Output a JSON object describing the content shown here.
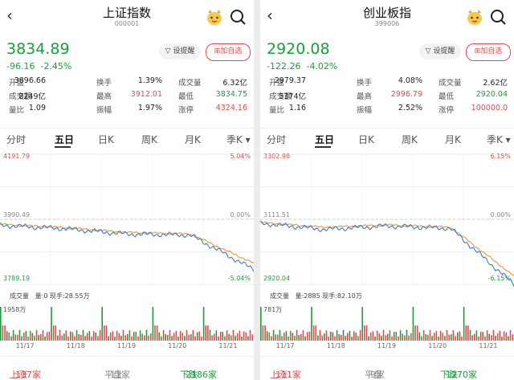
{
  "panels": [
    {
      "title": "上证指数",
      "code": "000001",
      "price": "3834.89",
      "change": "-96.16",
      "change_pct": "-2.45%",
      "alert_label": "设提醒",
      "fav_label": "加自选",
      "stats": [
        {
          "k1": "开盘",
          "v1": "3896.66",
          "k2": "换手",
          "v2": "1.39%",
          "k3": "成交量",
          "v3": "6.32亿"
        },
        {
          "k1": "成交额",
          "v1": "8249亿",
          "k2": "最高",
          "v2": "3912.01",
          "k3": "最低",
          "v3": "3834.75"
        },
        {
          "k1": "量比",
          "v1": "1.09",
          "k2": "振幅",
          "v2": "1.97%",
          "k3": "涨停",
          "v3": "4324.16"
        }
      ],
      "tabs": [
        "分时",
        "五日",
        "日K",
        "周K",
        "月K",
        "季K"
      ],
      "active_tab": "五日",
      "y_top": "4191.79",
      "y_mid": "3990.49",
      "y_bot": "3789.19",
      "pct_top": "5.04%",
      "pct_mid": "0.00%",
      "pct_bot": "-5.04%",
      "vol_title": "成交量",
      "vol_info": "量:0 现手:28.55万",
      "vol_max": "1958万",
      "dates": [
        "11/17",
        "11/18",
        "11/19",
        "11/20",
        "11/21"
      ],
      "up_label": "上涨",
      "up_count": "137家",
      "flat_label": "平盘",
      "flat_count": "11家",
      "down_label": "下跌",
      "down_count": "2186家"
    },
    {
      "title": "创业板指",
      "code": "399006",
      "price": "2920.08",
      "change": "-122.26",
      "change_pct": "-4.02%",
      "alert_label": "设提醒",
      "fav_label": "加自选",
      "stats": [
        {
          "k1": "开盘",
          "v1": "2979.37",
          "k2": "换手",
          "v2": "4.08%",
          "k3": "成交量",
          "v3": "2.62亿"
        },
        {
          "k1": "成交额",
          "v1": "5374亿",
          "k2": "最高",
          "v2": "2996.79",
          "k3": "最低",
          "v3": "2920.04"
        },
        {
          "k1": "量比",
          "v1": "1.16",
          "k2": "振幅",
          "v2": "2.52%",
          "k3": "涨停",
          "v3": "100000.0"
        }
      ],
      "tabs": [
        "分时",
        "五日",
        "日K",
        "周K",
        "月K",
        "季K"
      ],
      "active_tab": "五日",
      "y_top": "3302.98",
      "y_mid": "3111.51",
      "y_bot": "2920.04",
      "pct_top": "6.15%",
      "pct_mid": "0.00%",
      "pct_bot": "-6.15%",
      "vol_title": "成交量",
      "vol_info": "量:2885 现手:82.10万",
      "vol_max": "781万",
      "dates": [
        "11/17",
        "11/18",
        "11/19",
        "11/20",
        "11/21"
      ],
      "up_label": "上涨",
      "up_count": "111家",
      "flat_label": "平盘",
      "flat_count": "9家",
      "down_label": "下跌",
      "down_count": "1270家"
    }
  ],
  "chart_data": [
    {
      "type": "line",
      "title": "上证指数 五日",
      "x": [
        "11/17",
        "11/18",
        "11/19",
        "11/20",
        "11/21"
      ],
      "ylim": [
        3789.19,
        4191.79
      ],
      "reference": 3990.49,
      "series": [
        {
          "name": "price",
          "values": [
            3972,
            3962,
            3945,
            3942,
            3835
          ]
        },
        {
          "name": "avg",
          "values": [
            3975,
            3965,
            3950,
            3945,
            3855
          ]
        }
      ]
    },
    {
      "type": "line",
      "title": "创业板指 五日",
      "x": [
        "11/17",
        "11/18",
        "11/19",
        "11/20",
        "11/21"
      ],
      "ylim": [
        2920.04,
        3302.98
      ],
      "reference": 3111.51,
      "series": [
        {
          "name": "price",
          "values": [
            3100,
            3082,
            3092,
            3085,
            2920
          ]
        },
        {
          "name": "avg",
          "values": [
            3102,
            3088,
            3095,
            3088,
            2945
          ]
        }
      ]
    }
  ],
  "colors": {
    "up": "#e24b4b",
    "down": "#1b9e3e",
    "price_line": "#3a7bd5",
    "avg_line": "#e8a040"
  }
}
